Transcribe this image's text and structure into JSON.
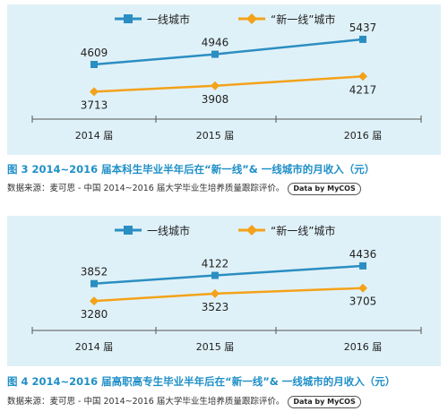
{
  "colors": {
    "tier1": "#2a8ec2",
    "newtier1": "#f3a21a",
    "panel_bg": "#dff1f8",
    "caption": "#1f8fc7"
  },
  "chart_data": [
    {
      "type": "line",
      "title": "图 3  2014~2016 届本科生毕业半年后在“新一线”& 一线城市的月收入（元）",
      "source": "数据来源：麦可思 - 中国 2014~2016 届大学毕业生培养质量跟踪评价。",
      "badge": "Data by MyCOS",
      "categories": [
        "2014 届",
        "2015 届",
        "2016 届"
      ],
      "series": [
        {
          "name": "一线城市",
          "values": [
            4609,
            4946,
            5437
          ]
        },
        {
          "name": "“新一线”城市",
          "values": [
            3713,
            3908,
            4217
          ]
        }
      ],
      "ylim": [
        3400,
        5700
      ],
      "legend": "top-center"
    },
    {
      "type": "line",
      "title": "图 4  2014~2016 届高职高专生毕业半年后在“新一线”& 一线城市的月收入（元）",
      "source": "数据来源：麦可思 - 中国 2014~2016 届大学毕业生培养质量跟踪评价。",
      "badge": "Data by MyCOS",
      "categories": [
        "2014 届",
        "2015 届",
        "2016 届"
      ],
      "series": [
        {
          "name": "一线城市",
          "values": [
            3852,
            4122,
            4436
          ]
        },
        {
          "name": "“新一线”城市",
          "values": [
            3280,
            3523,
            3705
          ]
        }
      ],
      "ylim": [
        2900,
        5200
      ],
      "legend": "top-center"
    }
  ]
}
